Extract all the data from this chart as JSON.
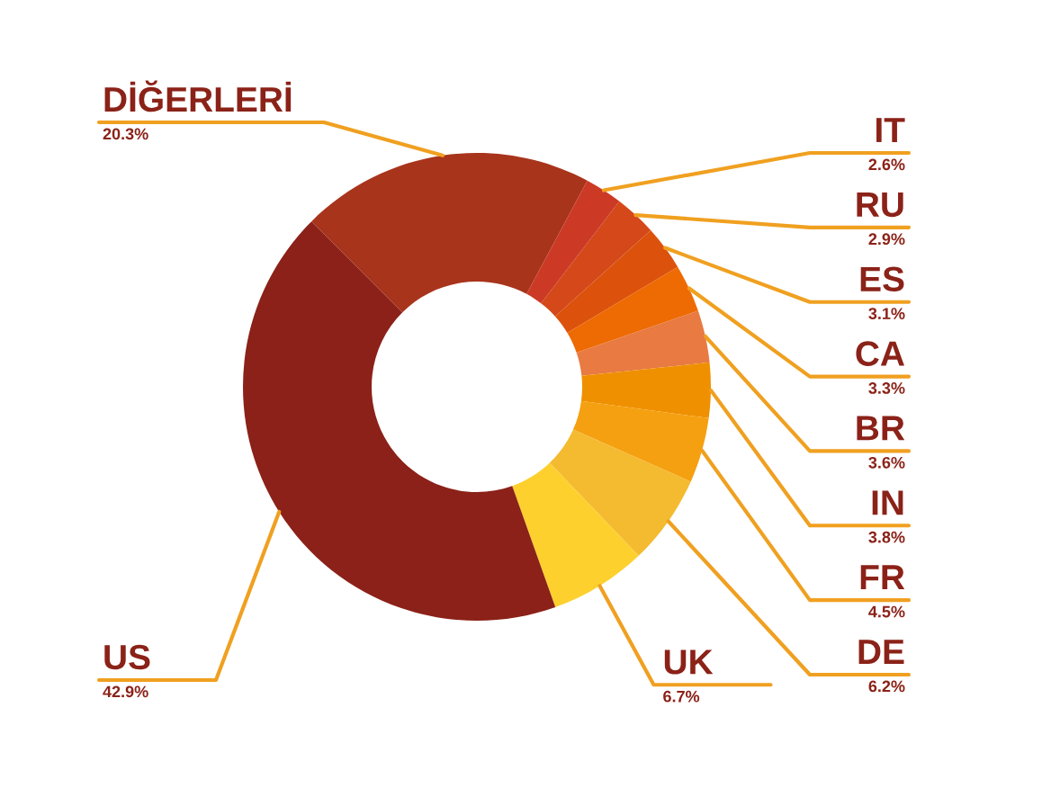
{
  "chart_data": {
    "type": "donut",
    "categories": [
      "DİĞERLERİ",
      "IT",
      "RU",
      "ES",
      "CA",
      "BR",
      "IN",
      "FR",
      "DE",
      "UK",
      "US"
    ],
    "values": [
      20.3,
      2.6,
      2.9,
      3.1,
      3.3,
      3.6,
      3.8,
      4.5,
      6.2,
      6.7,
      42.9
    ],
    "value_labels": [
      "20.3%",
      "2.6%",
      "2.9%",
      "3.1%",
      "3.3%",
      "3.6%",
      "3.8%",
      "4.5%",
      "6.2%",
      "6.7%",
      "42.9%"
    ],
    "colors": [
      "#a8341c",
      "#cc3a26",
      "#d4481a",
      "#dc520c",
      "#ee6a02",
      "#e87a42",
      "#ef9000",
      "#f5a010",
      "#f4ba30",
      "#fdd02e",
      "#8b2118"
    ],
    "legend": false
  }
}
